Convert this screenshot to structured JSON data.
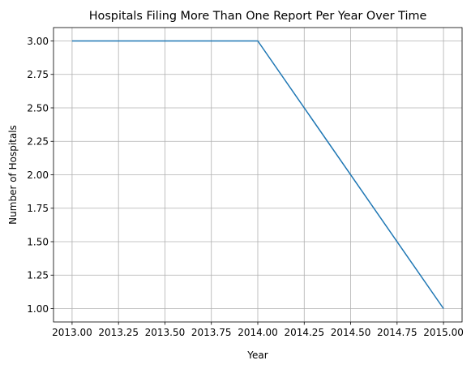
{
  "chart_data": {
    "type": "line",
    "title": "Hospitals Filing More Than One Report Per Year Over Time",
    "xlabel": "Year",
    "ylabel": "Number of Hospitals",
    "x": [
      2013,
      2014,
      2015
    ],
    "series": [
      {
        "values": [
          3,
          3,
          1
        ],
        "color": "#1f77b4"
      }
    ],
    "xlim": [
      2012.9,
      2015.1
    ],
    "ylim": [
      0.9,
      3.1
    ],
    "xticks": [
      2013.0,
      2013.25,
      2013.5,
      2013.75,
      2014.0,
      2014.25,
      2014.5,
      2014.75,
      2015.0
    ],
    "xtick_labels": [
      "2013.00",
      "2013.25",
      "2013.50",
      "2013.75",
      "2014.00",
      "2014.25",
      "2014.50",
      "2014.75",
      "2015.00"
    ],
    "yticks": [
      1.0,
      1.25,
      1.5,
      1.75,
      2.0,
      2.25,
      2.5,
      2.75,
      3.0
    ],
    "ytick_labels": [
      "1.00",
      "1.25",
      "1.50",
      "1.75",
      "2.00",
      "2.25",
      "2.50",
      "2.75",
      "3.00"
    ],
    "grid": true,
    "legend": "none"
  }
}
